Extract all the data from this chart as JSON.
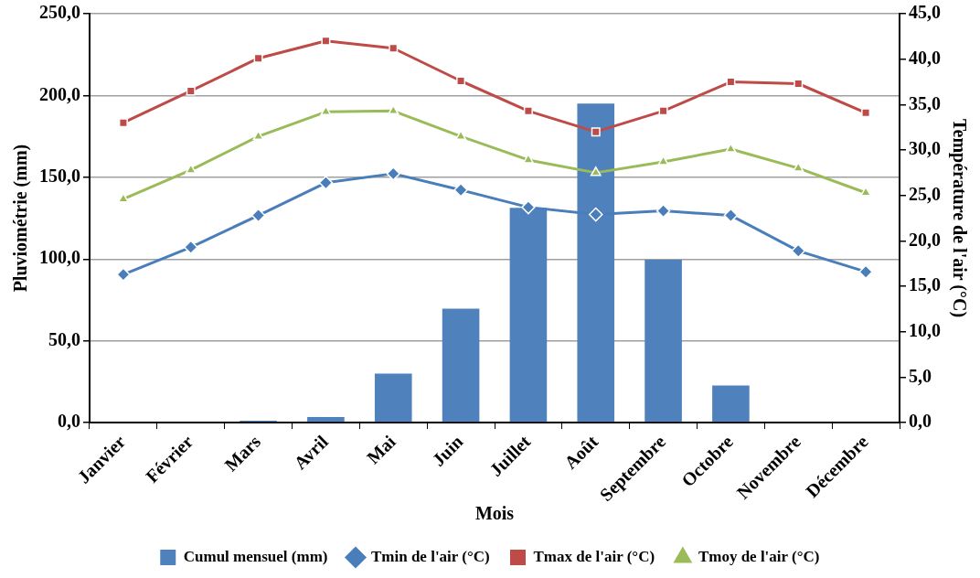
{
  "chart_data": {
    "type": "bar",
    "xlabel": "Mois",
    "ylabel": "Pluviométrie (mm)",
    "y2label": "Température de l'air (°C)",
    "categories": [
      "Janvier",
      "Février",
      "Mars",
      "Avril",
      "Mai",
      "Juin",
      "Juillet",
      "Août",
      "Septembre",
      "Octobre",
      "Novembre",
      "Décembre"
    ],
    "series": [
      {
        "name": "Cumul mensuel (mm)",
        "color": "#4f81bd",
        "values": [
          0,
          0,
          1.2,
          3.4,
          30.0,
          69.6,
          131.3,
          195.1,
          99.6,
          22.7,
          0,
          0
        ]
      },
      {
        "name": "Tmin de l'air (°C)",
        "type": "line",
        "axis": "y2",
        "marker": "diamond",
        "color": "#4a7ebb",
        "values": [
          16.3,
          19.3,
          22.8,
          26.4,
          27.4,
          25.6,
          23.7,
          22.9,
          23.3,
          22.8,
          18.9,
          16.6
        ]
      },
      {
        "name": "Tmax de l'air (°C)",
        "type": "line",
        "axis": "y2",
        "marker": "square",
        "color": "#be4b48",
        "values": [
          33.0,
          36.5,
          40.1,
          42.0,
          41.2,
          37.6,
          34.3,
          32.0,
          34.3,
          37.5,
          37.3,
          34.1
        ]
      },
      {
        "name": "Tmoy de l'air (°C)",
        "type": "line",
        "axis": "y2",
        "marker": "triangle",
        "color": "#9bbb59",
        "values": [
          24.6,
          27.8,
          31.5,
          34.2,
          34.3,
          31.5,
          28.9,
          27.5,
          28.7,
          30.1,
          28.0,
          25.3
        ]
      }
    ],
    "ylim": [
      0,
      250
    ],
    "yticks": [
      {
        "value": 0,
        "label": "0,0"
      },
      {
        "value": 50,
        "label": "50,0"
      },
      {
        "value": 100,
        "label": "100,0"
      },
      {
        "value": 150,
        "label": "150,0"
      },
      {
        "value": 200,
        "label": "200,0"
      },
      {
        "value": 250,
        "label": "250,0"
      }
    ],
    "y2lim": [
      0,
      45
    ],
    "y2ticks": [
      {
        "value": 0,
        "label": "0,0"
      },
      {
        "value": 5,
        "label": "5,0"
      },
      {
        "value": 10,
        "label": "10,0"
      },
      {
        "value": 15,
        "label": "15,0"
      },
      {
        "value": 20,
        "label": "20,0"
      },
      {
        "value": 25,
        "label": "25,0"
      },
      {
        "value": 30,
        "label": "30,0"
      },
      {
        "value": 35,
        "label": "35,0"
      },
      {
        "value": 40,
        "label": "40,0"
      },
      {
        "value": 45,
        "label": "45,0"
      }
    ],
    "grid": "y",
    "legend": "bottom",
    "line_style": "solid"
  }
}
